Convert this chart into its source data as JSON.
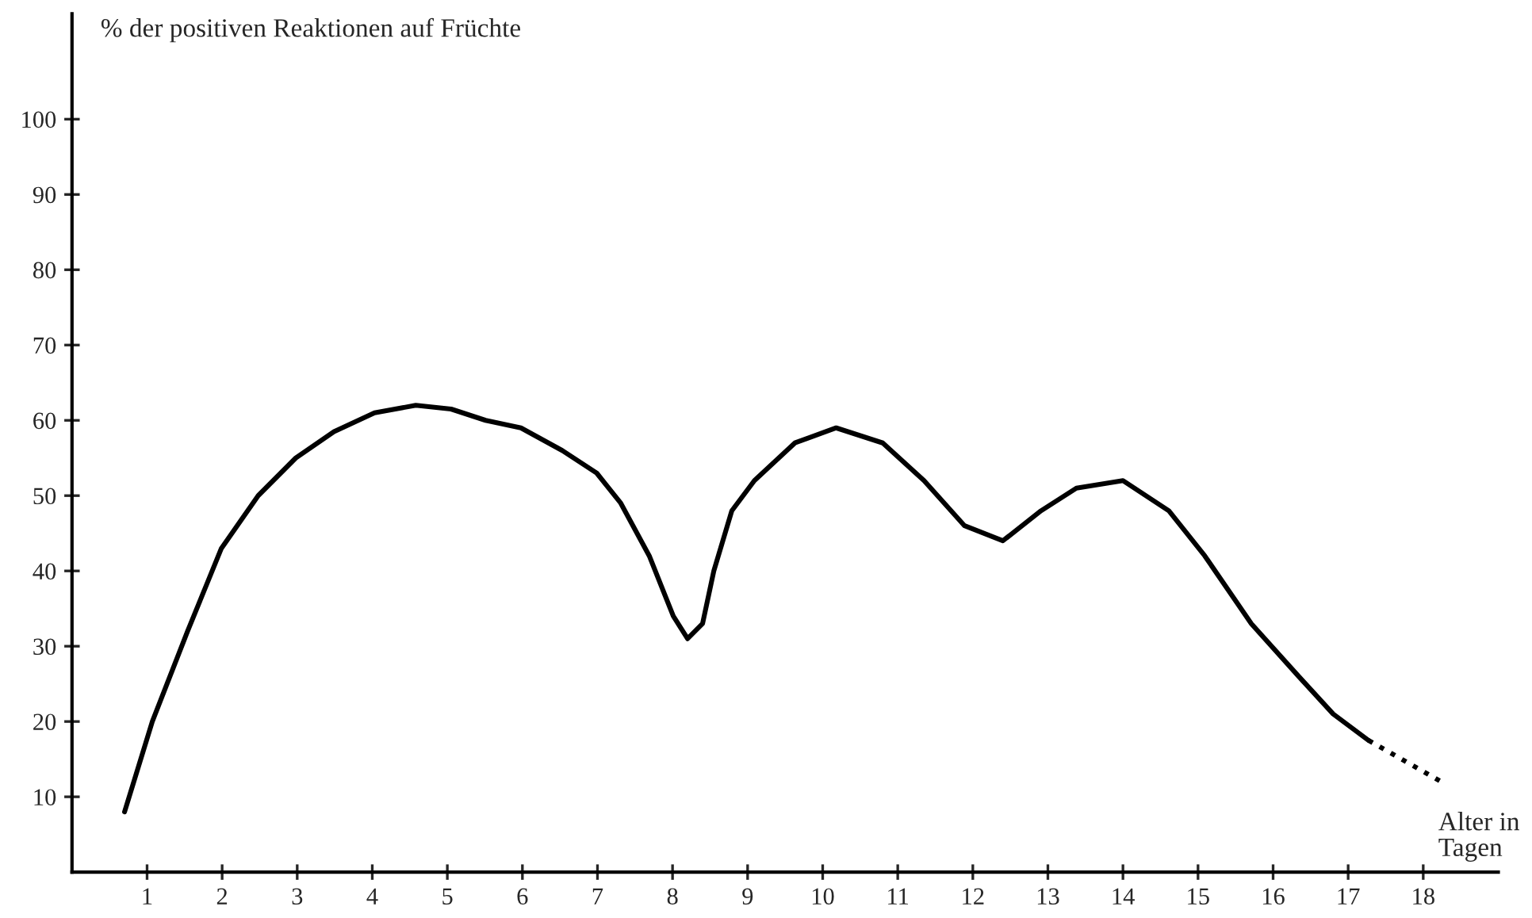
{
  "chart_data": {
    "type": "line",
    "ylabel": "% der positiven Reaktionen auf Früchte",
    "xlabel": "Alter in\nTagen",
    "xlim": [
      0,
      19
    ],
    "ylim": [
      0,
      114
    ],
    "xticks": [
      1,
      2,
      3,
      4,
      5,
      6,
      7,
      8,
      9,
      10,
      11,
      12,
      13,
      14,
      15,
      16,
      17,
      18
    ],
    "yticks": [
      10,
      20,
      30,
      40,
      50,
      60,
      70,
      80,
      90,
      100
    ],
    "grid": false,
    "legend": false,
    "marker": "none",
    "series": [
      {
        "color": "#000000",
        "line_style": "solid",
        "x": [
          0.7,
          1.07,
          1.54,
          1.99,
          2.48,
          2.98,
          3.49,
          4.03,
          4.58,
          5.05,
          5.51,
          5.98,
          6.53,
          6.99,
          7.31,
          7.69,
          8.01,
          8.2,
          8.4,
          8.55,
          8.79,
          9.09,
          9.63,
          10.18,
          10.8,
          11.35,
          11.89,
          12.4,
          12.91,
          13.38,
          14.0,
          14.61,
          15.09,
          15.71,
          16.34,
          16.8,
          17.27
        ],
        "values": [
          8,
          20,
          32,
          43,
          50,
          55,
          58.5,
          61,
          62,
          61.5,
          60,
          59,
          56,
          53,
          49,
          42,
          34,
          31,
          33,
          40,
          48,
          52,
          57,
          59,
          57,
          52,
          46,
          44,
          48,
          51,
          52,
          48,
          42,
          33,
          26,
          21,
          17.5
        ]
      },
      {
        "color": "#000000",
        "line_style": "dotted",
        "x": [
          17.27,
          18.24
        ],
        "values": [
          17.5,
          12
        ]
      }
    ]
  }
}
